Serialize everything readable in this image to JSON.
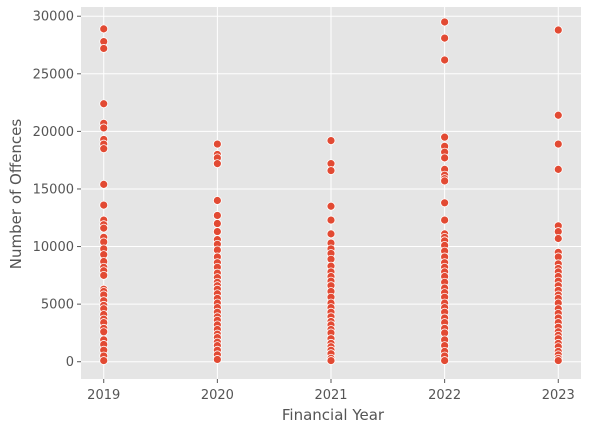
{
  "chart_data": {
    "type": "scatter",
    "title": "",
    "xlabel": "Financial Year",
    "ylabel": "Number of Offences",
    "x_ticks": [
      "2019",
      "2020",
      "2021",
      "2022",
      "2023"
    ],
    "y_ticks": [
      "0",
      "5000",
      "10000",
      "15000",
      "20000",
      "25000",
      "30000"
    ],
    "xlim": [
      2018.8,
      2023.2
    ],
    "ylim": [
      -1500,
      30800
    ],
    "grid": true,
    "background": "#e5e5e5",
    "grid_color": "#ffffff",
    "marker_color": "#e24a33",
    "marker_edge": "#ffffff",
    "series": [
      {
        "values_by_year": {
          "2019": [
            28900,
            27800,
            27200,
            22400,
            20700,
            20300,
            19300,
            18900,
            18500,
            15400,
            13600,
            12300,
            11900,
            11600,
            10800,
            10400,
            9800,
            9300,
            8700,
            8200,
            7900,
            7500,
            6300,
            6100,
            5800,
            5300,
            4900,
            4600,
            4100,
            3700,
            3400,
            2900,
            2600,
            1900,
            1500,
            1000,
            500,
            100
          ],
          "2020": [
            18900,
            18000,
            17700,
            17200,
            14000,
            12700,
            12000,
            11300,
            10600,
            10200,
            9700,
            9100,
            8600,
            8200,
            7700,
            7300,
            6900,
            6600,
            6300,
            5900,
            5500,
            5100,
            4700,
            4300,
            3900,
            3600,
            3200,
            2800,
            2400,
            2100,
            1700,
            1400,
            1000,
            600,
            200
          ],
          "2021": [
            19200,
            17200,
            16600,
            13500,
            12300,
            11100,
            10300,
            9800,
            9400,
            8900,
            8300,
            7800,
            7400,
            7000,
            6600,
            6100,
            5600,
            5100,
            4700,
            4300,
            3900,
            3500,
            3200,
            2800,
            2500,
            2000,
            1600,
            1300,
            1000,
            700,
            300,
            100
          ],
          "2022": [
            29500,
            28100,
            26200,
            19500,
            18700,
            18200,
            17700,
            16700,
            16200,
            15900,
            15700,
            13800,
            12300,
            11100,
            10800,
            10500,
            10100,
            9600,
            9100,
            8600,
            8200,
            7800,
            7400,
            6900,
            6400,
            6000,
            5600,
            5100,
            4700,
            4300,
            3800,
            3400,
            2900,
            2500,
            1900,
            1400,
            900,
            500,
            100
          ],
          "2023": [
            28800,
            21400,
            18900,
            16700,
            11800,
            11300,
            10700,
            9500,
            9100,
            8500,
            8100,
            7800,
            7400,
            7000,
            6600,
            6200,
            5800,
            5500,
            5100,
            4600,
            4200,
            3800,
            3400,
            3000,
            2600,
            2300,
            2000,
            1600,
            1300,
            900,
            600,
            300,
            100
          ]
        }
      }
    ]
  }
}
